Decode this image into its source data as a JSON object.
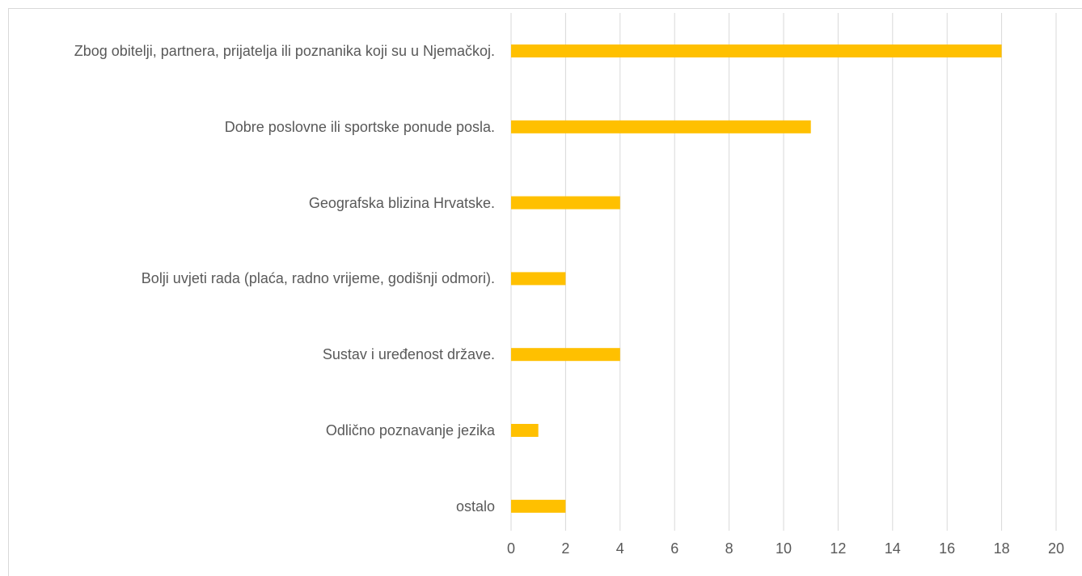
{
  "chart_data": {
    "type": "barh",
    "categories": [
      "Zbog obitelji, partnera, prijatelja ili poznanika koji su u Njemačkoj.",
      "Dobre poslovne ili sportske ponude posla.",
      "Geografska blizina Hrvatske.",
      "Bolji uvjeti rada (plaća, radno vrijeme, godišnji odmori).",
      "Sustav i uređenost države.",
      "Odlično poznavanje jezika",
      "ostalo"
    ],
    "values": [
      18,
      11,
      4,
      2,
      4,
      1,
      2
    ],
    "color": "#ffc000",
    "xlim": [
      0,
      20
    ],
    "xticks": [
      0,
      2,
      4,
      6,
      8,
      10,
      12,
      14,
      16,
      18,
      20
    ],
    "grid": true
  }
}
